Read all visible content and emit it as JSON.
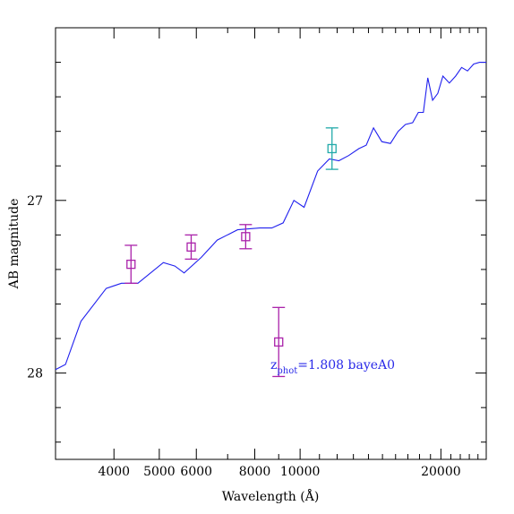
{
  "chart_data": {
    "type": "scatter",
    "xlabel": "Wavelength (Å)",
    "ylabel": "AB magnitude",
    "x_scale": "log",
    "xlim": [
      3000,
      25000
    ],
    "ylim": [
      28.5,
      26
    ],
    "y_inverted": true,
    "x_tick_labels": [
      "4000",
      "5000",
      "6000",
      "8000",
      "10000",
      "20000"
    ],
    "x_tick_values": [
      4000,
      5000,
      6000,
      8000,
      10000,
      20000
    ],
    "y_tick_labels": [
      "27",
      "28"
    ],
    "y_tick_values": [
      27,
      28
    ],
    "grid": false,
    "colors": {
      "model": "#2020ee",
      "photometry": "#aa22aa",
      "photometry_alt": "#22aaaa",
      "annotation": "#2a2ae8"
    },
    "annotation": {
      "z_label": "z",
      "z_subscript": "phot",
      "value_text": "=1.808 bayeA0"
    },
    "series": [
      {
        "kind": "line",
        "x": [
          3000,
          3150,
          3400,
          3850,
          4150,
          4500,
          5100,
          5400,
          5650,
          6150,
          6650,
          7350,
          8200,
          8700,
          9200,
          9700,
          10200,
          10900,
          11550,
          12100,
          12700,
          13350,
          13850,
          14350,
          14950,
          15600,
          16200,
          16800,
          17400,
          17900,
          18350,
          18750,
          19200,
          19700,
          20200,
          20850,
          21500,
          22150,
          22800,
          23500,
          24200,
          25000
        ],
        "y": [
          27.98,
          27.95,
          27.7,
          27.51,
          27.48,
          27.48,
          27.36,
          27.38,
          27.42,
          27.33,
          27.23,
          27.17,
          27.16,
          27.16,
          27.13,
          27.0,
          27.04,
          26.83,
          26.76,
          26.77,
          26.74,
          26.7,
          26.68,
          26.58,
          26.66,
          26.67,
          26.6,
          26.56,
          26.55,
          26.49,
          26.49,
          26.29,
          26.42,
          26.38,
          26.28,
          26.32,
          26.28,
          26.23,
          26.25,
          26.21,
          26.2,
          26.2
        ]
      },
      {
        "kind": "points",
        "x": [
          4350,
          5850,
          7650,
          9000,
          11700
        ],
        "y": [
          27.37,
          27.27,
          27.21,
          27.82,
          26.7
        ],
        "err": [
          0.11,
          0.07,
          0.07,
          0.2,
          0.12
        ],
        "point_colors": [
          "photometry",
          "photometry",
          "photometry",
          "photometry",
          "photometry_alt"
        ]
      }
    ]
  }
}
